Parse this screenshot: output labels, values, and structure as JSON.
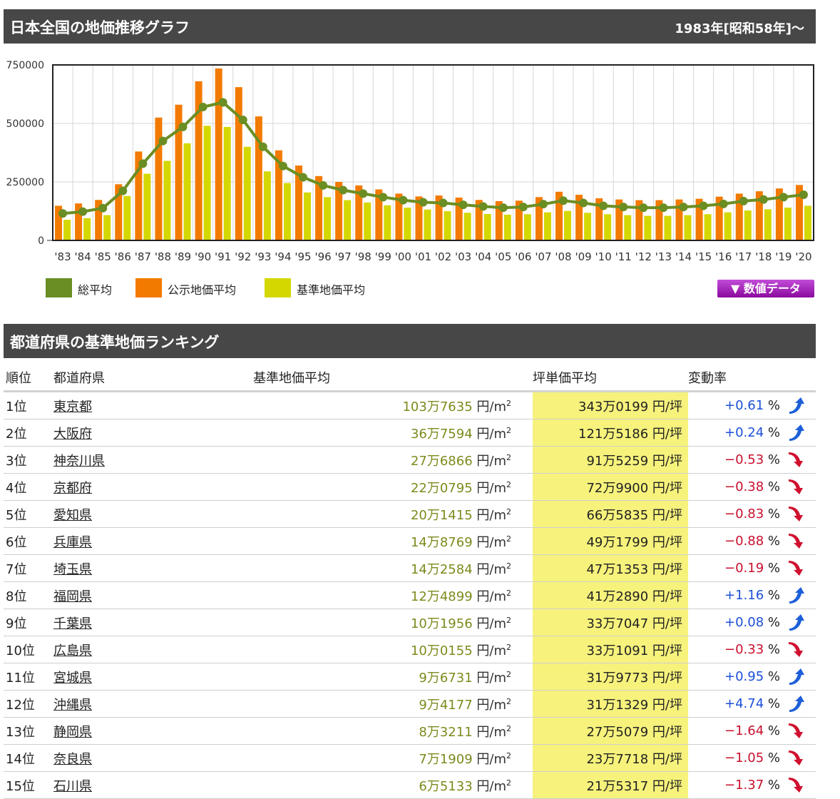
{
  "header": {
    "title": "日本全国の地価推移グラフ",
    "period": "1983年[昭和58年]～"
  },
  "legend": {
    "total": "総平均",
    "public": "公示地価平均",
    "standard": "基準地価平均"
  },
  "data_button": "▼ 数値データ",
  "colors": {
    "total": "#6a8e23",
    "public": "#f37a00",
    "standard": "#d4d800",
    "highlight": "#f6f27c"
  },
  "chart_data": {
    "type": "bar",
    "categories": [
      "'83",
      "'84",
      "'85",
      "'86",
      "'87",
      "'88",
      "'89",
      "'90",
      "'91",
      "'92",
      "'93",
      "'94",
      "'95",
      "'96",
      "'97",
      "'98",
      "'99",
      "'00",
      "'01",
      "'02",
      "'03",
      "'04",
      "'05",
      "'06",
      "'07",
      "'08",
      "'09",
      "'10",
      "'11",
      "'12",
      "'13",
      "'14",
      "'15",
      "'16",
      "'17",
      "'18",
      "'19",
      "'20"
    ],
    "ylim": [
      0,
      750000
    ],
    "yticks": [
      0,
      250000,
      500000,
      750000
    ],
    "ytick_labels": [
      "0",
      "250000",
      "500000",
      "750000"
    ],
    "grid": true,
    "series": [
      {
        "name": "公示地価平均",
        "kind": "bar",
        "values": [
          148000,
          158000,
          173000,
          240000,
          380000,
          525000,
          580000,
          680000,
          735000,
          655000,
          530000,
          385000,
          320000,
          275000,
          250000,
          235000,
          218000,
          200000,
          188000,
          192000,
          183000,
          173000,
          168000,
          170000,
          185000,
          208000,
          195000,
          180000,
          175000,
          172000,
          172000,
          175000,
          178000,
          187000,
          200000,
          210000,
          222000,
          237000
        ]
      },
      {
        "name": "基準地価平均",
        "kind": "bar",
        "values": [
          88000,
          95000,
          108000,
          190000,
          285000,
          340000,
          415000,
          490000,
          485000,
          400000,
          295000,
          245000,
          205000,
          185000,
          172000,
          162000,
          150000,
          140000,
          132000,
          125000,
          118000,
          113000,
          110000,
          112000,
          120000,
          126000,
          118000,
          112000,
          108000,
          105000,
          105000,
          108000,
          112000,
          120000,
          128000,
          133000,
          140000,
          148000
        ]
      },
      {
        "name": "総平均",
        "kind": "line",
        "values": [
          115000,
          123000,
          138000,
          212000,
          328000,
          425000,
          485000,
          570000,
          590000,
          515000,
          400000,
          318000,
          270000,
          235000,
          215000,
          200000,
          185000,
          172000,
          163000,
          160000,
          152000,
          145000,
          140000,
          143000,
          155000,
          170000,
          160000,
          148000,
          143000,
          140000,
          140000,
          143000,
          148000,
          156000,
          168000,
          175000,
          185000,
          195000
        ]
      }
    ]
  },
  "ranking": {
    "title": "都道府県の基準地価ランキング",
    "headers": {
      "rank": "順位",
      "pref": "都道府県",
      "kijun": "基準地価平均",
      "tsubo": "坪単価平均",
      "change": "変動率"
    },
    "unit_m2": "円/m",
    "unit_sup": "2",
    "unit_tsubo": "円/坪",
    "percent": "%",
    "rows": [
      {
        "rank": "1位",
        "pref": "東京都",
        "kijun": "103万7635",
        "tsubo": "343万0199",
        "change": "+0.61",
        "dir": "up"
      },
      {
        "rank": "2位",
        "pref": "大阪府",
        "kijun": "36万7594",
        "tsubo": "121万5186",
        "change": "+0.24",
        "dir": "up"
      },
      {
        "rank": "3位",
        "pref": "神奈川県",
        "kijun": "27万6866",
        "tsubo": "91万5259",
        "change": "−0.53",
        "dir": "down"
      },
      {
        "rank": "4位",
        "pref": "京都府",
        "kijun": "22万0795",
        "tsubo": "72万9900",
        "change": "−0.38",
        "dir": "down"
      },
      {
        "rank": "5位",
        "pref": "愛知県",
        "kijun": "20万1415",
        "tsubo": "66万5835",
        "change": "−0.83",
        "dir": "down"
      },
      {
        "rank": "6位",
        "pref": "兵庫県",
        "kijun": "14万8769",
        "tsubo": "49万1799",
        "change": "−0.88",
        "dir": "down"
      },
      {
        "rank": "7位",
        "pref": "埼玉県",
        "kijun": "14万2584",
        "tsubo": "47万1353",
        "change": "−0.19",
        "dir": "down"
      },
      {
        "rank": "8位",
        "pref": "福岡県",
        "kijun": "12万4899",
        "tsubo": "41万2890",
        "change": "+1.16",
        "dir": "up"
      },
      {
        "rank": "9位",
        "pref": "千葉県",
        "kijun": "10万1956",
        "tsubo": "33万7047",
        "change": "+0.08",
        "dir": "up"
      },
      {
        "rank": "10位",
        "pref": "広島県",
        "kijun": "10万0155",
        "tsubo": "33万1091",
        "change": "−0.33",
        "dir": "down"
      },
      {
        "rank": "11位",
        "pref": "宮城県",
        "kijun": "9万6731",
        "tsubo": "31万9773",
        "change": "+0.95",
        "dir": "up"
      },
      {
        "rank": "12位",
        "pref": "沖縄県",
        "kijun": "9万4177",
        "tsubo": "31万1329",
        "change": "+4.74",
        "dir": "up"
      },
      {
        "rank": "13位",
        "pref": "静岡県",
        "kijun": "8万3211",
        "tsubo": "27万5079",
        "change": "−1.64",
        "dir": "down"
      },
      {
        "rank": "14位",
        "pref": "奈良県",
        "kijun": "7万1909",
        "tsubo": "23万7718",
        "change": "−1.05",
        "dir": "down"
      },
      {
        "rank": "15位",
        "pref": "石川県",
        "kijun": "6万5133",
        "tsubo": "21万5317",
        "change": "−1.37",
        "dir": "down"
      }
    ]
  }
}
